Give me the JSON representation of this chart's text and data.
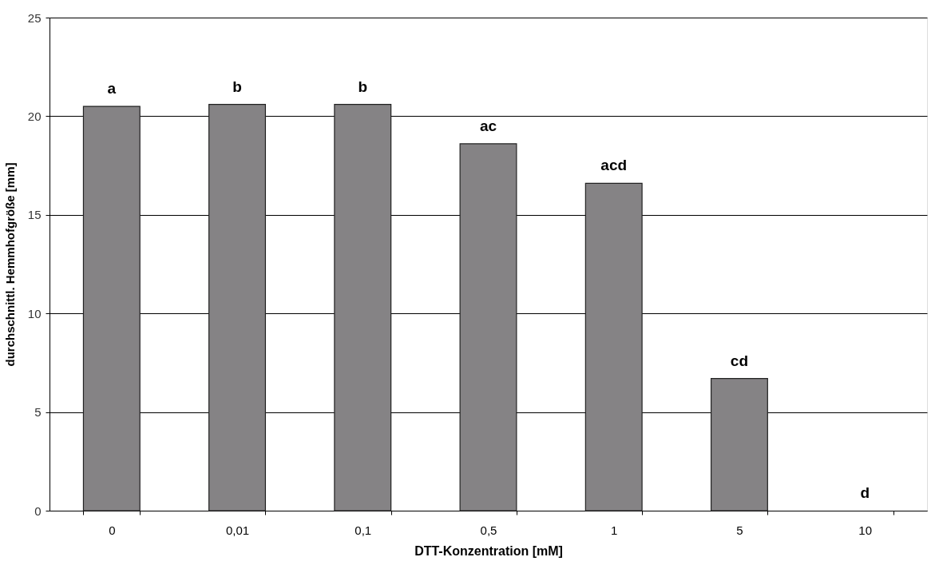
{
  "chart_data": {
    "type": "bar",
    "xlabel": "DTT-Konzentration [mM]",
    "ylabel": "durchschnittl. Hemmhofgröße [mm]",
    "categories": [
      "0",
      "0,01",
      "0,1",
      "0,5",
      "1",
      "5",
      "10"
    ],
    "values": [
      20.5,
      20.6,
      20.6,
      18.6,
      16.6,
      6.7,
      0
    ],
    "color": "#858385",
    "ylim": [
      0,
      25
    ],
    "yticks": [
      0,
      5,
      10,
      15,
      20,
      25
    ],
    "grid": "y",
    "annotations": [
      {
        "text": "a",
        "x": "0",
        "y": 20.5
      },
      {
        "text": "b",
        "x": "0,01",
        "y": 20.6
      },
      {
        "text": "b",
        "x": "0,1",
        "y": 20.6
      },
      {
        "text": "ac",
        "x": "0,5",
        "y": 18.6
      },
      {
        "text": "acd",
        "x": "1",
        "y": 16.6
      },
      {
        "text": "cd",
        "x": "5",
        "y": 6.7
      },
      {
        "text": "d",
        "x": "10",
        "y": 0
      }
    ]
  }
}
